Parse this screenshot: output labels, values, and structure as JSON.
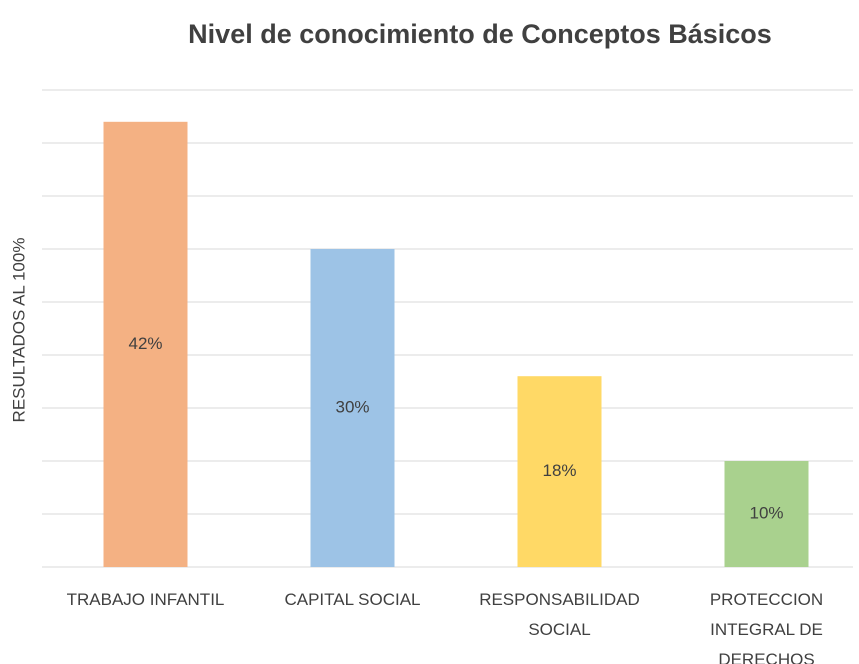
{
  "chart_data": {
    "type": "bar",
    "title": "Nivel de conocimiento de Conceptos Básicos",
    "y_label": "RESULTADOS AL 100%",
    "categories": [
      "TRABAJO INFANTIL",
      "CAPITAL SOCIAL",
      "RESPONSABILIDAD SOCIAL",
      "PROTECCION INTEGRAL DE DERECHOS"
    ],
    "values": [
      42,
      30,
      18,
      10
    ],
    "value_labels": [
      "42%",
      "30%",
      "18%",
      "10%"
    ],
    "colors": [
      "#f4b183",
      "#9dc3e6",
      "#ffd966",
      "#a9d18e"
    ],
    "ylim": [
      0,
      45
    ],
    "yticks": [
      0,
      5,
      10,
      15,
      20,
      25,
      30,
      35,
      40,
      45
    ],
    "grid": true
  }
}
